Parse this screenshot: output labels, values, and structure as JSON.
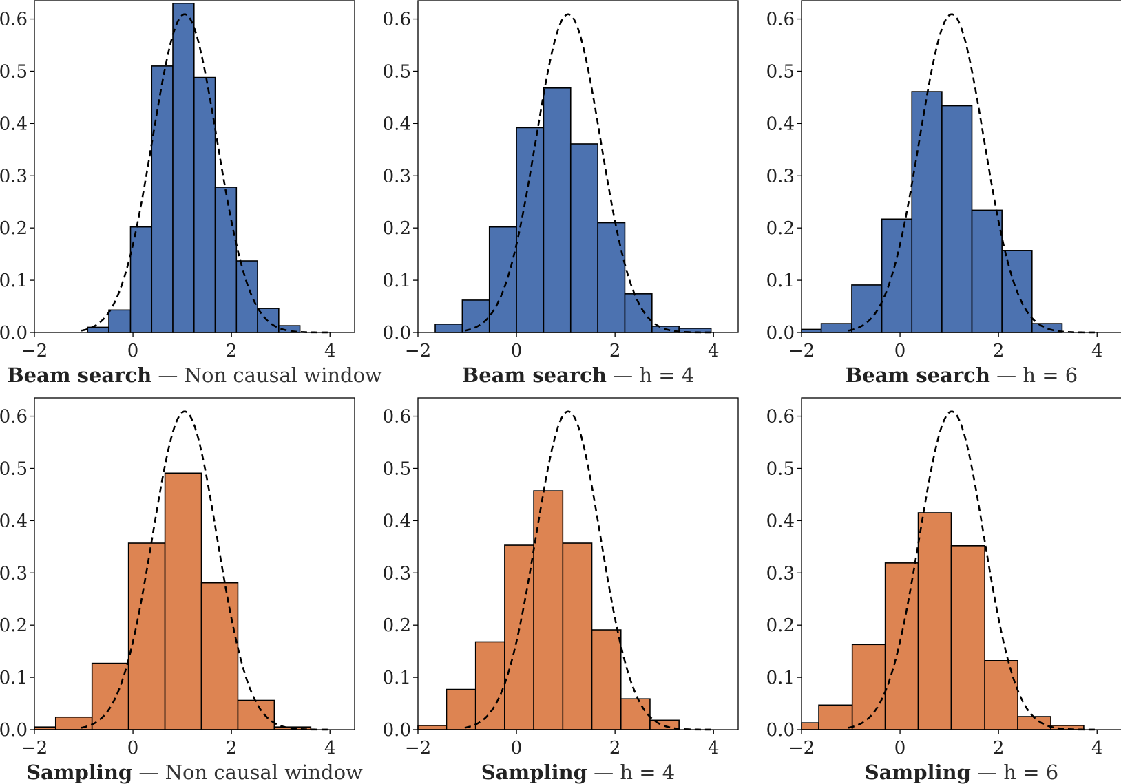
{
  "figure": {
    "x_tick_labels": [
      "−2",
      "0",
      "2",
      "4"
    ],
    "y_tick_labels": [
      "0.0",
      "0.1",
      "0.2",
      "0.3",
      "0.4",
      "0.5",
      "0.6"
    ]
  },
  "chart_data": [
    {
      "type": "bar",
      "caption_bold": "Beam search",
      "caption_rest": " — Non causal window",
      "color": "#4C72B0",
      "xlim": [
        -2.0,
        4.5
      ],
      "ylim": [
        0,
        0.635
      ],
      "bin_edges": [
        -0.92,
        -0.49,
        -0.05,
        0.38,
        0.81,
        1.24,
        1.67,
        2.1,
        2.53,
        2.96,
        3.39
      ],
      "values": [
        0.01,
        0.043,
        0.202,
        0.51,
        0.63,
        0.488,
        0.278,
        0.137,
        0.046,
        0.013
      ],
      "reference_curve": {
        "style": "dashed",
        "mean": 1.05,
        "sd": 0.655
      }
    },
    {
      "type": "bar",
      "caption_bold": "Beam search",
      "caption_rest": " — h = 4",
      "color": "#4C72B0",
      "xlim": [
        -2.0,
        4.5
      ],
      "ylim": [
        0,
        0.635
      ],
      "bin_edges": [
        -1.65,
        -1.1,
        -0.55,
        0.0,
        0.55,
        1.1,
        1.65,
        2.2,
        2.75,
        3.3,
        3.95
      ],
      "values": [
        0.016,
        0.062,
        0.202,
        0.392,
        0.468,
        0.361,
        0.21,
        0.074,
        0.012,
        0.008
      ],
      "reference_curve": {
        "style": "dashed",
        "mean": 1.05,
        "sd": 0.655
      }
    },
    {
      "type": "bar",
      "caption_bold": "Beam search",
      "caption_rest": " — h = 6",
      "color": "#4C72B0",
      "xlim": [
        -2.0,
        4.5
      ],
      "ylim": [
        0,
        0.635
      ],
      "bin_edges": [
        -2.0,
        -1.6,
        -0.98,
        -0.37,
        0.24,
        0.85,
        1.46,
        2.07,
        2.68,
        3.29
      ],
      "values": [
        0.006,
        0.017,
        0.091,
        0.217,
        0.461,
        0.434,
        0.234,
        0.157,
        0.017
      ],
      "reference_curve": {
        "style": "dashed",
        "mean": 1.05,
        "sd": 0.655
      }
    },
    {
      "type": "bar",
      "caption_bold": "Sampling",
      "caption_rest": " — Non causal window",
      "color": "#DD8452",
      "xlim": [
        -2.0,
        4.5
      ],
      "ylim": [
        0,
        0.635
      ],
      "bin_edges": [
        -2.0,
        -1.57,
        -0.83,
        -0.09,
        0.65,
        1.39,
        2.13,
        2.87,
        3.61
      ],
      "values": [
        0.005,
        0.024,
        0.127,
        0.357,
        0.491,
        0.281,
        0.056,
        0.005
      ],
      "reference_curve": {
        "style": "dashed",
        "mean": 1.05,
        "sd": 0.655
      }
    },
    {
      "type": "bar",
      "caption_bold": "Sampling",
      "caption_rest": " — h = 4",
      "color": "#DD8452",
      "xlim": [
        -2.0,
        4.5
      ],
      "ylim": [
        0,
        0.635
      ],
      "bin_edges": [
        -2.0,
        -1.42,
        -0.83,
        -0.24,
        0.35,
        0.94,
        1.53,
        2.12,
        2.71,
        3.3
      ],
      "values": [
        0.008,
        0.077,
        0.168,
        0.353,
        0.457,
        0.357,
        0.191,
        0.059,
        0.018
      ],
      "reference_curve": {
        "style": "dashed",
        "mean": 1.05,
        "sd": 0.655
      }
    },
    {
      "type": "bar",
      "caption_bold": "Sampling",
      "caption_rest": " — h = 6",
      "color": "#DD8452",
      "xlim": [
        -2.0,
        4.5
      ],
      "ylim": [
        0,
        0.635
      ],
      "bin_edges": [
        -2.0,
        -1.65,
        -0.97,
        -0.3,
        0.37,
        1.04,
        1.72,
        2.39,
        3.06,
        3.73
      ],
      "values": [
        0.013,
        0.047,
        0.163,
        0.319,
        0.415,
        0.352,
        0.132,
        0.025,
        0.008
      ],
      "reference_curve": {
        "style": "dashed",
        "mean": 1.05,
        "sd": 0.655
      }
    }
  ]
}
